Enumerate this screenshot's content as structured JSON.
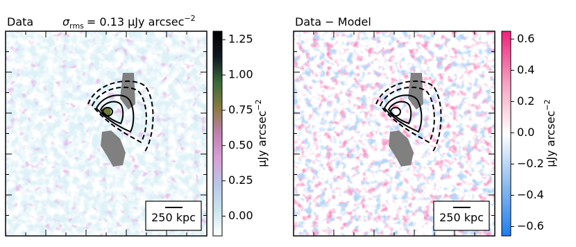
{
  "chart_data": [
    {
      "type": "image",
      "title": "Data",
      "annotation": {
        "symbol": "σ",
        "subscript": "rms",
        "text": "= 0.13 μJy arcsec",
        "superscript": "−2"
      },
      "colorbar_label": "μJy arcsec",
      "colorbar_label_superscript": "−2",
      "ylim": [
        -0.14,
        1.31
      ],
      "yticks": [
        {
          "value": 0,
          "label": "0.00"
        },
        0.25,
        {
          "value": 0.5,
          "label": "0.50"
        },
        0.75,
        {
          "value": 1,
          "label": "1.00"
        },
        1.25
      ],
      "colormap": [
        "#ffffff",
        "#c8e6ee",
        "#b8c8e8",
        "#d9a0d8",
        "#c080b0",
        "#8a7a40",
        "#3a6a3a",
        "#101820",
        "#000000"
      ],
      "scalebar_label": "250 kpc"
    },
    {
      "type": "image",
      "title": "Data − Model",
      "colorbar_label": "μJy arcsec",
      "colorbar_label_superscript": "−2",
      "ylim": [
        -0.66,
        0.65
      ],
      "yticks": [
        {
          "value": -0.6,
          "label": "−0.6"
        },
        {
          "value": -0.4,
          "label": "−0.4"
        },
        {
          "value": -0.2,
          "label": "−0.2"
        },
        {
          "value": 0,
          "label": "0.0"
        },
        0.2,
        0.4,
        0.6
      ],
      "colormap": [
        "#1e7ef0",
        "#8cbcf0",
        "#ffffff",
        "#f5a0c0",
        "#f0207a"
      ],
      "scalebar_label": "250 kpc"
    }
  ]
}
